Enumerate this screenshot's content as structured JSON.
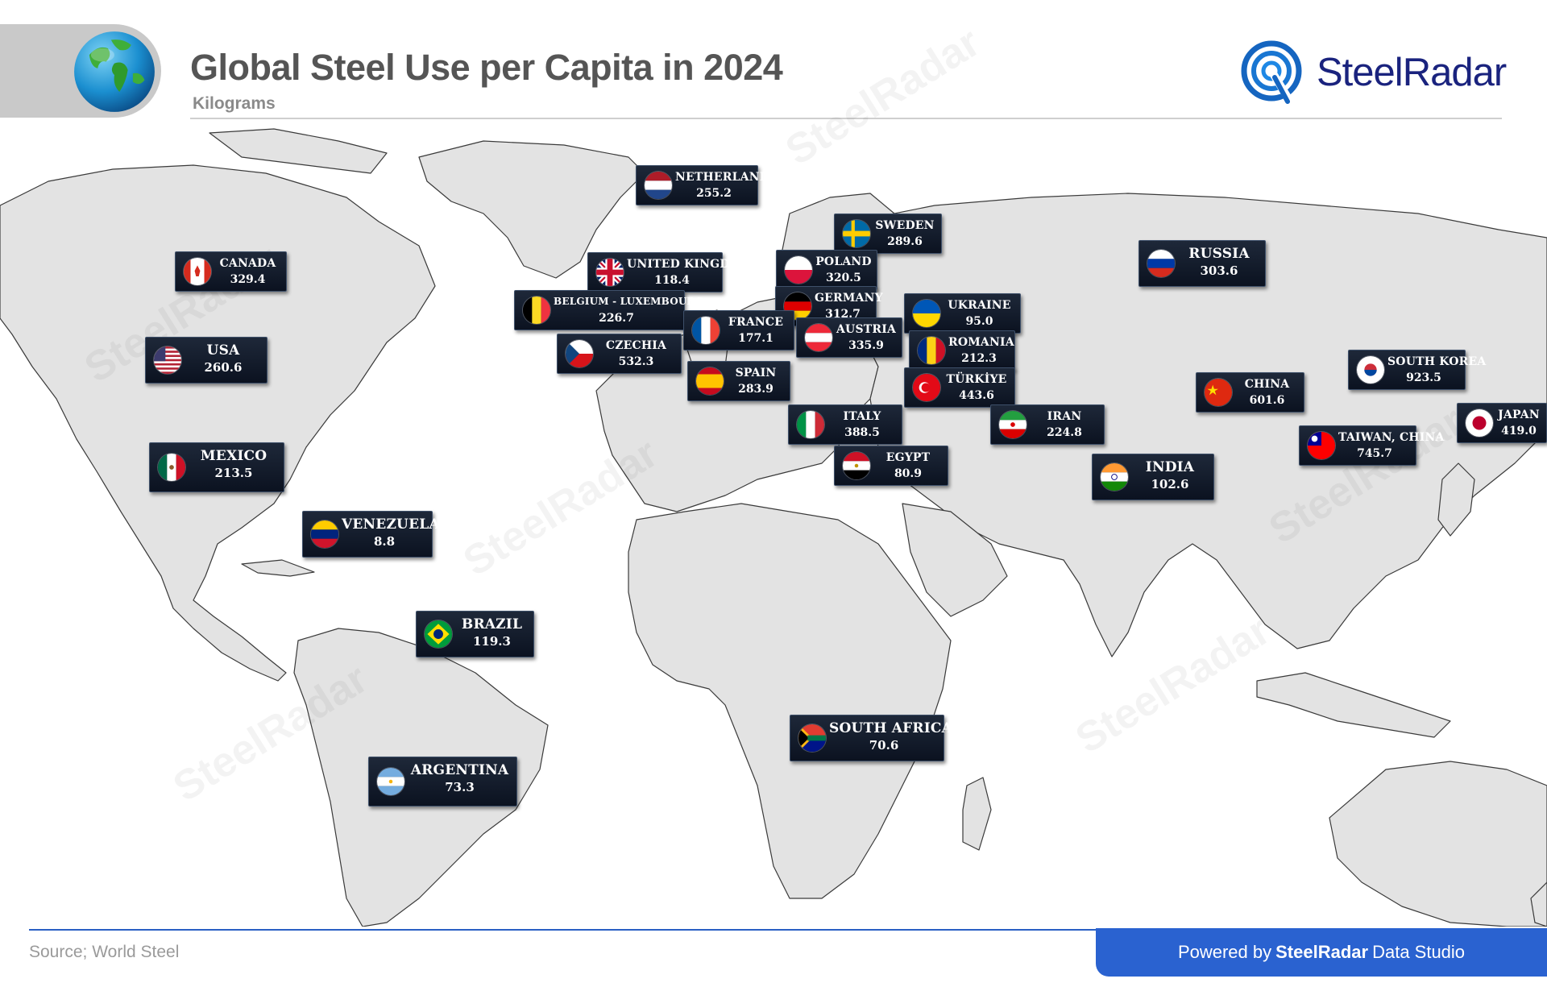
{
  "header": {
    "title": "Global Steel Use per Capita in 2024",
    "subtitle": "Kilograms",
    "logo_text_bold": "Steel",
    "logo_text_light": "Radar",
    "globe_icon": "globe-icon"
  },
  "watermark_text": "SteelRadar",
  "countries": [
    {
      "name": "NETHERLANDS",
      "value": "255.2",
      "flag": "netherlands"
    },
    {
      "name": "SWEDEN",
      "value": "289.6",
      "flag": "sweden"
    },
    {
      "name": "RUSSIA",
      "value": "303.6",
      "flag": "russia"
    },
    {
      "name": "CANADA",
      "value": "329.4",
      "flag": "canada"
    },
    {
      "name": "UNITED KINGDOM",
      "value": "118.4",
      "flag": "uk"
    },
    {
      "name": "POLAND",
      "value": "320.5",
      "flag": "poland"
    },
    {
      "name": "BELGIUM - LUXEMBOURG",
      "value": "226.7",
      "flag": "belgium"
    },
    {
      "name": "GERMANY",
      "value": "312.7",
      "flag": "germany"
    },
    {
      "name": "UKRAINE",
      "value": "95.0",
      "flag": "ukraine"
    },
    {
      "name": "FRANCE",
      "value": "177.1",
      "flag": "france"
    },
    {
      "name": "AUSTRIA",
      "value": "335.9",
      "flag": "austria"
    },
    {
      "name": "USA",
      "value": "260.6",
      "flag": "usa"
    },
    {
      "name": "CZECHIA",
      "value": "532.3",
      "flag": "czechia"
    },
    {
      "name": "ROMANIA",
      "value": "212.3",
      "flag": "romania"
    },
    {
      "name": "SOUTH KOREA",
      "value": "923.5",
      "flag": "southkorea"
    },
    {
      "name": "SPAIN",
      "value": "283.9",
      "flag": "spain"
    },
    {
      "name": "TÜRKİYE",
      "value": "443.6",
      "flag": "turkey"
    },
    {
      "name": "CHINA",
      "value": "601.6",
      "flag": "china"
    },
    {
      "name": "ITALY",
      "value": "388.5",
      "flag": "italy"
    },
    {
      "name": "IRAN",
      "value": "224.8",
      "flag": "iran"
    },
    {
      "name": "JAPAN",
      "value": "419.0",
      "flag": "japan"
    },
    {
      "name": "TAIWAN, CHINA",
      "value": "745.7",
      "flag": "taiwan"
    },
    {
      "name": "MEXICO",
      "value": "213.5",
      "flag": "mexico"
    },
    {
      "name": "EGYPT",
      "value": "80.9",
      "flag": "egypt"
    },
    {
      "name": "INDIA",
      "value": "102.6",
      "flag": "india"
    },
    {
      "name": "VENEZUELA",
      "value": "8.8",
      "flag": "venezuela"
    },
    {
      "name": "BRAZIL",
      "value": "119.3",
      "flag": "brazil"
    },
    {
      "name": "SOUTH AFRICA",
      "value": "70.6",
      "flag": "southafrica"
    },
    {
      "name": "ARGENTINA",
      "value": "73.3",
      "flag": "argentina"
    }
  ],
  "footer": {
    "source": "Source; World Steel",
    "powered_prefix": "Powered by",
    "powered_brand": "SteelRadar",
    "powered_suffix": "Data Studio"
  },
  "colors": {
    "land": "#e3e3e3",
    "land_border": "#333333",
    "label_bg": "#111a2b",
    "accent_blue": "#2a62d0",
    "brand_navy": "#1a237e"
  }
}
